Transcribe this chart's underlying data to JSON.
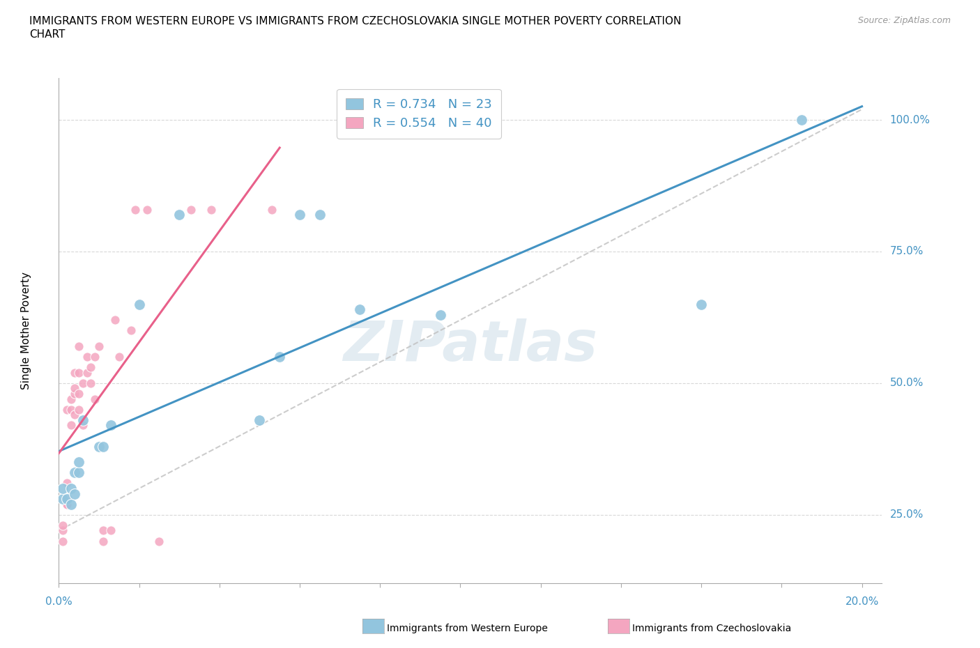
{
  "title_line1": "IMMIGRANTS FROM WESTERN EUROPE VS IMMIGRANTS FROM CZECHOSLOVAKIA SINGLE MOTHER POVERTY CORRELATION",
  "title_line2": "CHART",
  "source": "Source: ZipAtlas.com",
  "ylabel": "Single Mother Poverty",
  "yticks": [
    0.25,
    0.5,
    0.75,
    1.0
  ],
  "ytick_labels": [
    "25.0%",
    "50.0%",
    "75.0%",
    "100.0%"
  ],
  "xlim": [
    0.0,
    0.205
  ],
  "ylim": [
    0.12,
    1.08
  ],
  "r_blue": 0.734,
  "n_blue": 23,
  "r_pink": 0.554,
  "n_pink": 40,
  "blue_color": "#92c5de",
  "pink_color": "#f4a6c0",
  "blue_line_color": "#4393c3",
  "pink_line_color": "#e8608a",
  "legend_label_blue": "Immigrants from Western Europe",
  "legend_label_pink": "Immigrants from Czechoslovakia",
  "watermark": "ZIPatlas",
  "blue_x": [
    0.001,
    0.001,
    0.002,
    0.003,
    0.003,
    0.004,
    0.004,
    0.005,
    0.005,
    0.006,
    0.01,
    0.011,
    0.013,
    0.02,
    0.03,
    0.05,
    0.055,
    0.06,
    0.065,
    0.075,
    0.095,
    0.16,
    0.185
  ],
  "blue_y": [
    0.28,
    0.3,
    0.28,
    0.27,
    0.3,
    0.29,
    0.33,
    0.33,
    0.35,
    0.43,
    0.38,
    0.38,
    0.42,
    0.65,
    0.82,
    0.43,
    0.55,
    0.82,
    0.82,
    0.64,
    0.63,
    0.65,
    1.0
  ],
  "pink_x": [
    0.001,
    0.001,
    0.001,
    0.002,
    0.002,
    0.002,
    0.002,
    0.002,
    0.003,
    0.003,
    0.003,
    0.004,
    0.004,
    0.004,
    0.004,
    0.005,
    0.005,
    0.005,
    0.005,
    0.006,
    0.006,
    0.007,
    0.007,
    0.008,
    0.008,
    0.009,
    0.009,
    0.01,
    0.011,
    0.011,
    0.013,
    0.014,
    0.015,
    0.018,
    0.019,
    0.022,
    0.025,
    0.033,
    0.038,
    0.053
  ],
  "pink_y": [
    0.2,
    0.22,
    0.23,
    0.27,
    0.27,
    0.28,
    0.31,
    0.45,
    0.42,
    0.45,
    0.47,
    0.44,
    0.48,
    0.49,
    0.52,
    0.45,
    0.48,
    0.52,
    0.57,
    0.42,
    0.5,
    0.52,
    0.55,
    0.5,
    0.53,
    0.47,
    0.55,
    0.57,
    0.2,
    0.22,
    0.22,
    0.62,
    0.55,
    0.6,
    0.83,
    0.83,
    0.2,
    0.83,
    0.83,
    0.83
  ]
}
